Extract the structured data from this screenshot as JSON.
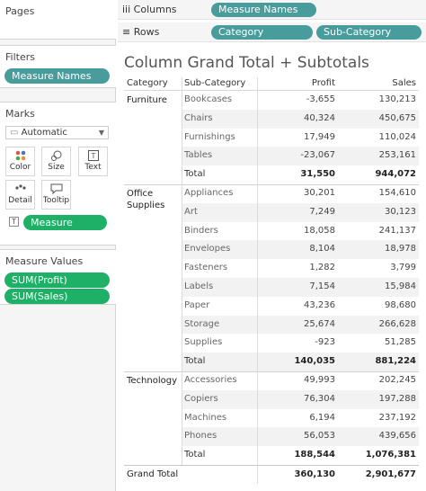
{
  "shelves": {
    "pages_label": "Pages",
    "columns_label": "Columns",
    "rows_label": "Rows",
    "columns_pills": [
      "Measure Names"
    ],
    "rows_pills": [
      "Category",
      "Sub-Category"
    ]
  },
  "filters": {
    "title": "Filters",
    "pills": [
      "Measure Names"
    ]
  },
  "marks": {
    "title": "Marks",
    "type": "Automatic",
    "buttons": [
      "Color",
      "Size",
      "Text",
      "Detail",
      "Tooltip"
    ],
    "measure_values_pill": "Measure Values"
  },
  "measure_values_card": {
    "title": "Measure Values",
    "pills": [
      "SUM(Profit)",
      "SUM(Sales)"
    ]
  },
  "view": {
    "title": "Column Grand Total + Subtotals",
    "headers": {
      "category": "Category",
      "subcategory": "Sub-Category",
      "profit": "Profit",
      "sales": "Sales"
    },
    "groups": [
      {
        "category": "Furniture",
        "rows": [
          {
            "sub": "Bookcases",
            "profit": "-3,655",
            "sales": "130,213"
          },
          {
            "sub": "Chairs",
            "profit": "40,324",
            "sales": "450,675"
          },
          {
            "sub": "Furnishings",
            "profit": "17,949",
            "sales": "110,024"
          },
          {
            "sub": "Tables",
            "profit": "-23,067",
            "sales": "253,161"
          }
        ],
        "total": {
          "label": "Total",
          "profit": "31,550",
          "sales": "944,072"
        }
      },
      {
        "category": "Office Supplies",
        "rows": [
          {
            "sub": "Appliances",
            "profit": "30,201",
            "sales": "154,610"
          },
          {
            "sub": "Art",
            "profit": "7,249",
            "sales": "30,123"
          },
          {
            "sub": "Binders",
            "profit": "18,058",
            "sales": "241,137"
          },
          {
            "sub": "Envelopes",
            "profit": "8,104",
            "sales": "18,978"
          },
          {
            "sub": "Fasteners",
            "profit": "1,282",
            "sales": "3,799"
          },
          {
            "sub": "Labels",
            "profit": "7,154",
            "sales": "15,984"
          },
          {
            "sub": "Paper",
            "profit": "43,236",
            "sales": "98,680"
          },
          {
            "sub": "Storage",
            "profit": "25,674",
            "sales": "266,628"
          },
          {
            "sub": "Supplies",
            "profit": "-923",
            "sales": "51,285"
          }
        ],
        "total": {
          "label": "Total",
          "profit": "140,035",
          "sales": "881,224"
        }
      },
      {
        "category": "Technology",
        "rows": [
          {
            "sub": "Accessories",
            "profit": "49,993",
            "sales": "202,245"
          },
          {
            "sub": "Copiers",
            "profit": "76,304",
            "sales": "197,288"
          },
          {
            "sub": "Machines",
            "profit": "6,194",
            "sales": "237,192"
          },
          {
            "sub": "Phones",
            "profit": "56,053",
            "sales": "439,656"
          }
        ],
        "total": {
          "label": "Total",
          "profit": "188,544",
          "sales": "1,076,381"
        }
      }
    ],
    "grand_total": {
      "label": "Grand Total",
      "profit": "360,130",
      "sales": "2,901,677"
    }
  }
}
